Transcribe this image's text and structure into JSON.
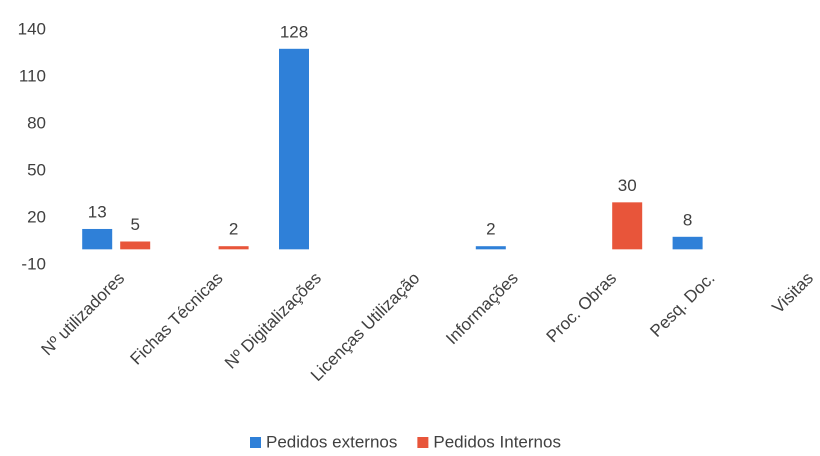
{
  "chart_data": {
    "type": "bar",
    "categories": [
      "Nº utilizadores",
      "Fichas Técnicas",
      "Nº Digitalizações",
      "Licenças Utilização",
      "Informações",
      "Proc. Obras",
      "Pesq. Doc.",
      "Visitas"
    ],
    "series": [
      {
        "name": "Pedidos externos",
        "color": "#2f80d8",
        "values": [
          13,
          null,
          128,
          null,
          2,
          null,
          8,
          null
        ]
      },
      {
        "name": "Pedidos Internos",
        "color": "#e8553a",
        "values": [
          5,
          2,
          null,
          null,
          null,
          30,
          null,
          null
        ]
      }
    ],
    "ylim": [
      -10,
      140
    ],
    "yticks": [
      -10,
      20,
      50,
      80,
      110,
      140
    ],
    "grid": false,
    "legend": "bottom"
  }
}
